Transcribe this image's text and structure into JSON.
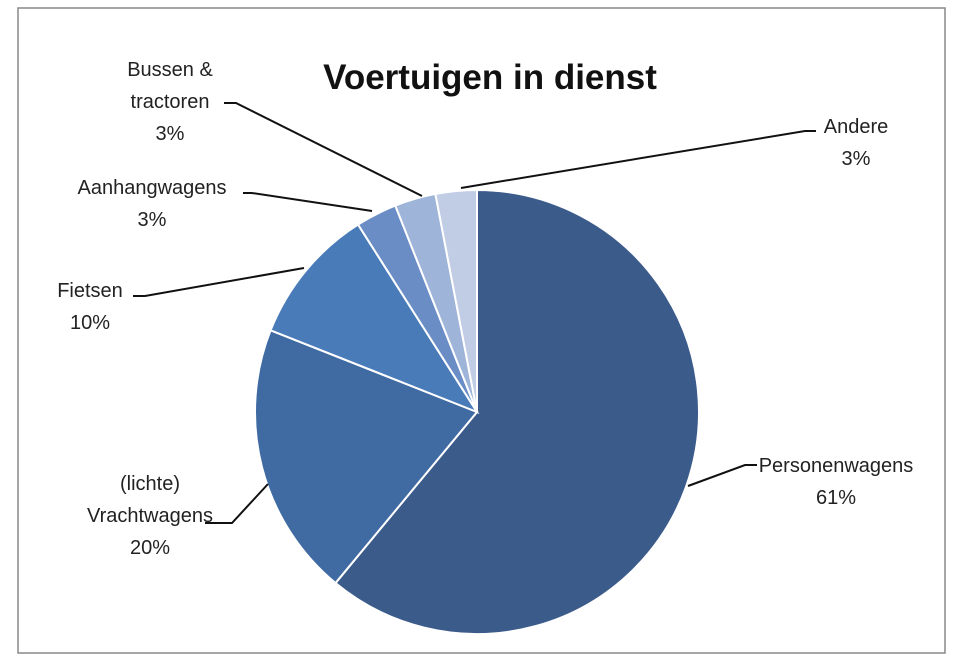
{
  "chart_data": {
    "type": "pie",
    "title": "Voertuigen in dienst",
    "categories": [
      "Personenwagens",
      "(lichte) Vrachtwagens",
      "Fietsen",
      "Aanhangwagens",
      "Bussen & tractoren",
      "Andere"
    ],
    "values": [
      61,
      20,
      10,
      3,
      3,
      3
    ],
    "value_labels": [
      "61%",
      "20%",
      "10%",
      "3%",
      "3%",
      "3%"
    ],
    "colors": [
      "#3b5b8b",
      "#3f6aa2",
      "#4a7bb9",
      "#6a8dc5",
      "#9fb4d9",
      "#c1cde5"
    ]
  }
}
